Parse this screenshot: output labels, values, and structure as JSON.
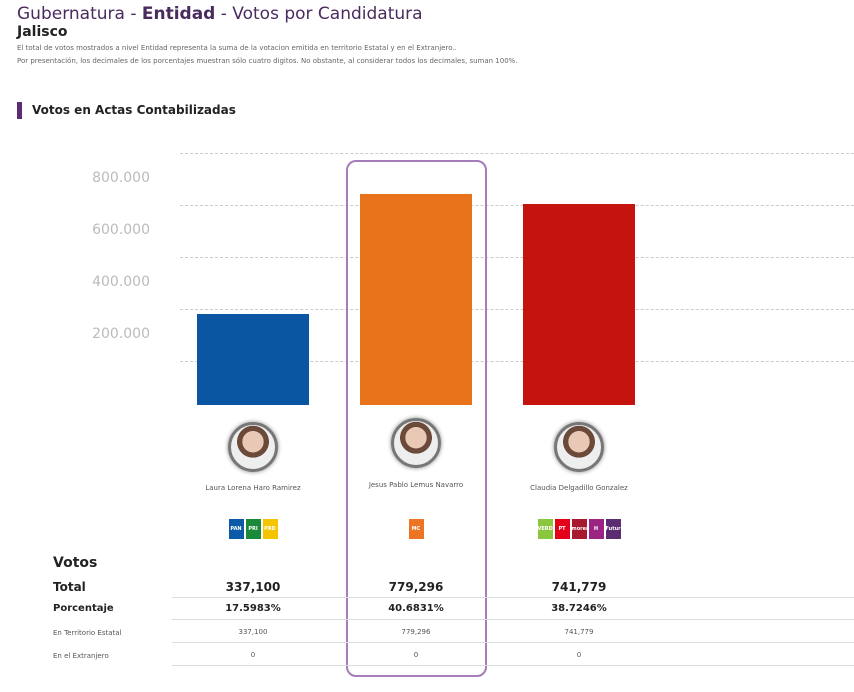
{
  "header": {
    "title_pre": "Gubernatura - ",
    "title_bold": "Entidad",
    "title_post": " - Votos por Candidatura",
    "state": "Jalisco",
    "note1": "El total de votos mostrados a nivel Entidad representa la suma de la votacion emitida en territorio Estatal y en el Extranjero..",
    "note2": "Por presentación, los decimales de los porcentajes muestran sólo cuatro digitos. No obstante, al considerar todos los decimales, suman 100%."
  },
  "section_title": "Votos en Actas Contabilizadas",
  "chart_data": {
    "type": "bar",
    "yticks": [
      {
        "label": "800.000",
        "value": 800000
      },
      {
        "label": "600.000",
        "value": 600000
      },
      {
        "label": "400.000",
        "value": 400000
      },
      {
        "label": "200.000",
        "value": 200000
      }
    ],
    "categories": [
      "Laura Lorena Haro Ramirez",
      "Jesus Pablo Lemus Navarro",
      "Claudia Delgadillo Gonzalez"
    ],
    "values": [
      337100,
      779296,
      741779
    ],
    "colors": [
      "#0b56a3",
      "#e8731a",
      "#c5140e"
    ],
    "highlighted": 1
  },
  "candidates": [
    {
      "name": "Laura Lorena Haro Ramirez",
      "parties": [
        {
          "label": "PAN",
          "color": "#0a5aa8"
        },
        {
          "label": "PRI",
          "color": "#1a8a3a"
        },
        {
          "label": "PRD",
          "color": "#f2c500"
        }
      ],
      "total": "337,100",
      "pct": "17.5983%",
      "estatal": "337,100",
      "extranjero": "0"
    },
    {
      "name": "Jesus Pablo Lemus Navarro",
      "parties": [
        {
          "label": "MC",
          "color": "#ed7422"
        }
      ],
      "total": "779,296",
      "pct": "40.6831%",
      "estatal": "779,296",
      "extranjero": "0"
    },
    {
      "name": "Claudia Delgadillo Gonzalez",
      "parties": [
        {
          "label": "VERDE",
          "color": "#8cc63f"
        },
        {
          "label": "PT",
          "color": "#e4001b"
        },
        {
          "label": "morena",
          "color": "#a6192e"
        },
        {
          "label": "H",
          "color": "#9b2383"
        },
        {
          "label": "Futuro",
          "color": "#5b2c6f"
        }
      ],
      "total": "741,779",
      "pct": "38.7246%",
      "estatal": "741,779",
      "extranjero": "0"
    }
  ],
  "table": {
    "heading": "Votos",
    "total": "Total",
    "pct": "Porcentaje",
    "estatal": "En Territorio Estatal",
    "extranjero": "En el Extranjero"
  }
}
